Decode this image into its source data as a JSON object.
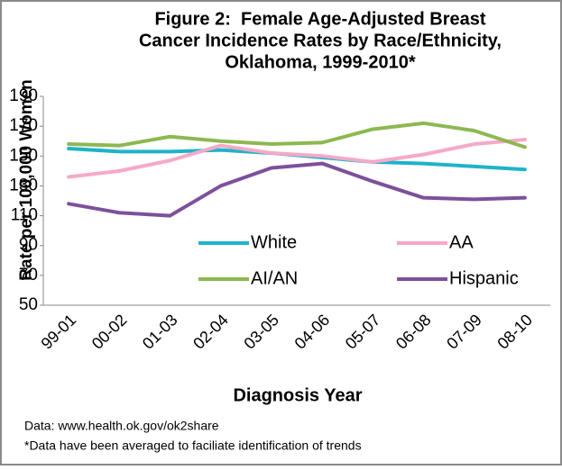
{
  "chart_data": {
    "type": "line",
    "title": [
      "Figure 2:  Female Age-Adjusted Breast",
      "Cancer Incidence Rates by Race/Ethnicity,",
      "Oklahoma, 1999-2010*"
    ],
    "y_label": "Rate per 100,000 Women",
    "x_label": "Diagnosis Year",
    "categories": [
      "99-01",
      "00-02",
      "01-03",
      "02-04",
      "03-05",
      "04-06",
      "05-07",
      "06-08",
      "07-09",
      "08-10"
    ],
    "series": [
      {
        "name": "White",
        "color": "#1fb3c8",
        "values": [
          155,
          153,
          153,
          154,
          152,
          149,
          146,
          145,
          143,
          141
        ]
      },
      {
        "name": "AA",
        "color": "#f5a9c8",
        "values": [
          136,
          140,
          147,
          157,
          152,
          150,
          146,
          151,
          158,
          161
        ]
      },
      {
        "name": "AI/AN",
        "color": "#8db851",
        "values": [
          158,
          157,
          163,
          160,
          158,
          159,
          168,
          172,
          167,
          156
        ]
      },
      {
        "name": "Hispanic",
        "color": "#7d509b",
        "values": [
          118,
          112,
          110,
          130,
          142,
          145,
          133,
          122,
          121,
          122
        ]
      }
    ],
    "ylim": [
      50,
      190
    ],
    "yticks": [
      50,
      70,
      90,
      110,
      130,
      150,
      170,
      190
    ],
    "grid": false,
    "legend": "inside",
    "notes": [
      "Data: www.health.ok.gov/ok2share",
      "*Data have been averaged to faciliate identification of trends"
    ]
  }
}
